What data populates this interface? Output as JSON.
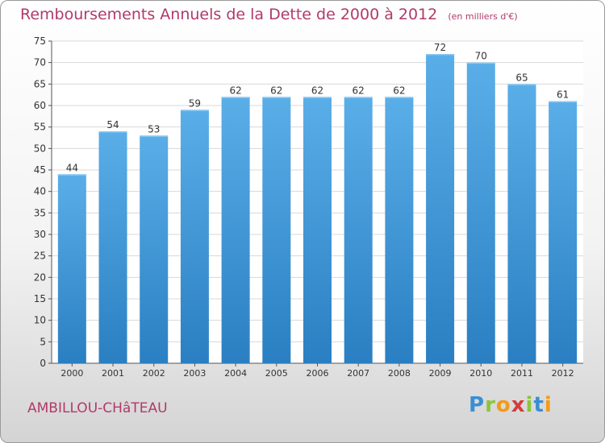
{
  "title": "Remboursements Annuels de la Dette de 2000 à 2012",
  "unit_note": "(en milliers d'€)",
  "city": "AMBILLOU-CHâTEAU",
  "logo": {
    "letters": [
      "P",
      "r",
      "o",
      "x",
      "i",
      "t",
      "i"
    ],
    "colors": [
      "#3a8ed6",
      "#8cc43c",
      "#f29a1a",
      "#d63a3a",
      "#8cc43c",
      "#3a8ed6",
      "#f29a1a"
    ]
  },
  "colors": {
    "bar_top": "#5aaee8",
    "bar_bottom": "#2a7fc2",
    "title": "#b03a6a",
    "grid": "#d8d8d8",
    "axis_text": "#333333"
  },
  "chart_data": {
    "type": "bar",
    "categories": [
      "2000",
      "2001",
      "2002",
      "2003",
      "2004",
      "2005",
      "2006",
      "2007",
      "2008",
      "2009",
      "2010",
      "2011",
      "2012"
    ],
    "values": [
      44,
      54,
      53,
      59,
      62,
      62,
      62,
      62,
      62,
      72,
      70,
      65,
      61
    ],
    "ylim": [
      0,
      75
    ],
    "yticks": [
      0,
      5,
      10,
      15,
      20,
      25,
      30,
      35,
      40,
      45,
      50,
      55,
      60,
      65,
      70,
      75
    ],
    "grid": true,
    "data_labels": true
  }
}
